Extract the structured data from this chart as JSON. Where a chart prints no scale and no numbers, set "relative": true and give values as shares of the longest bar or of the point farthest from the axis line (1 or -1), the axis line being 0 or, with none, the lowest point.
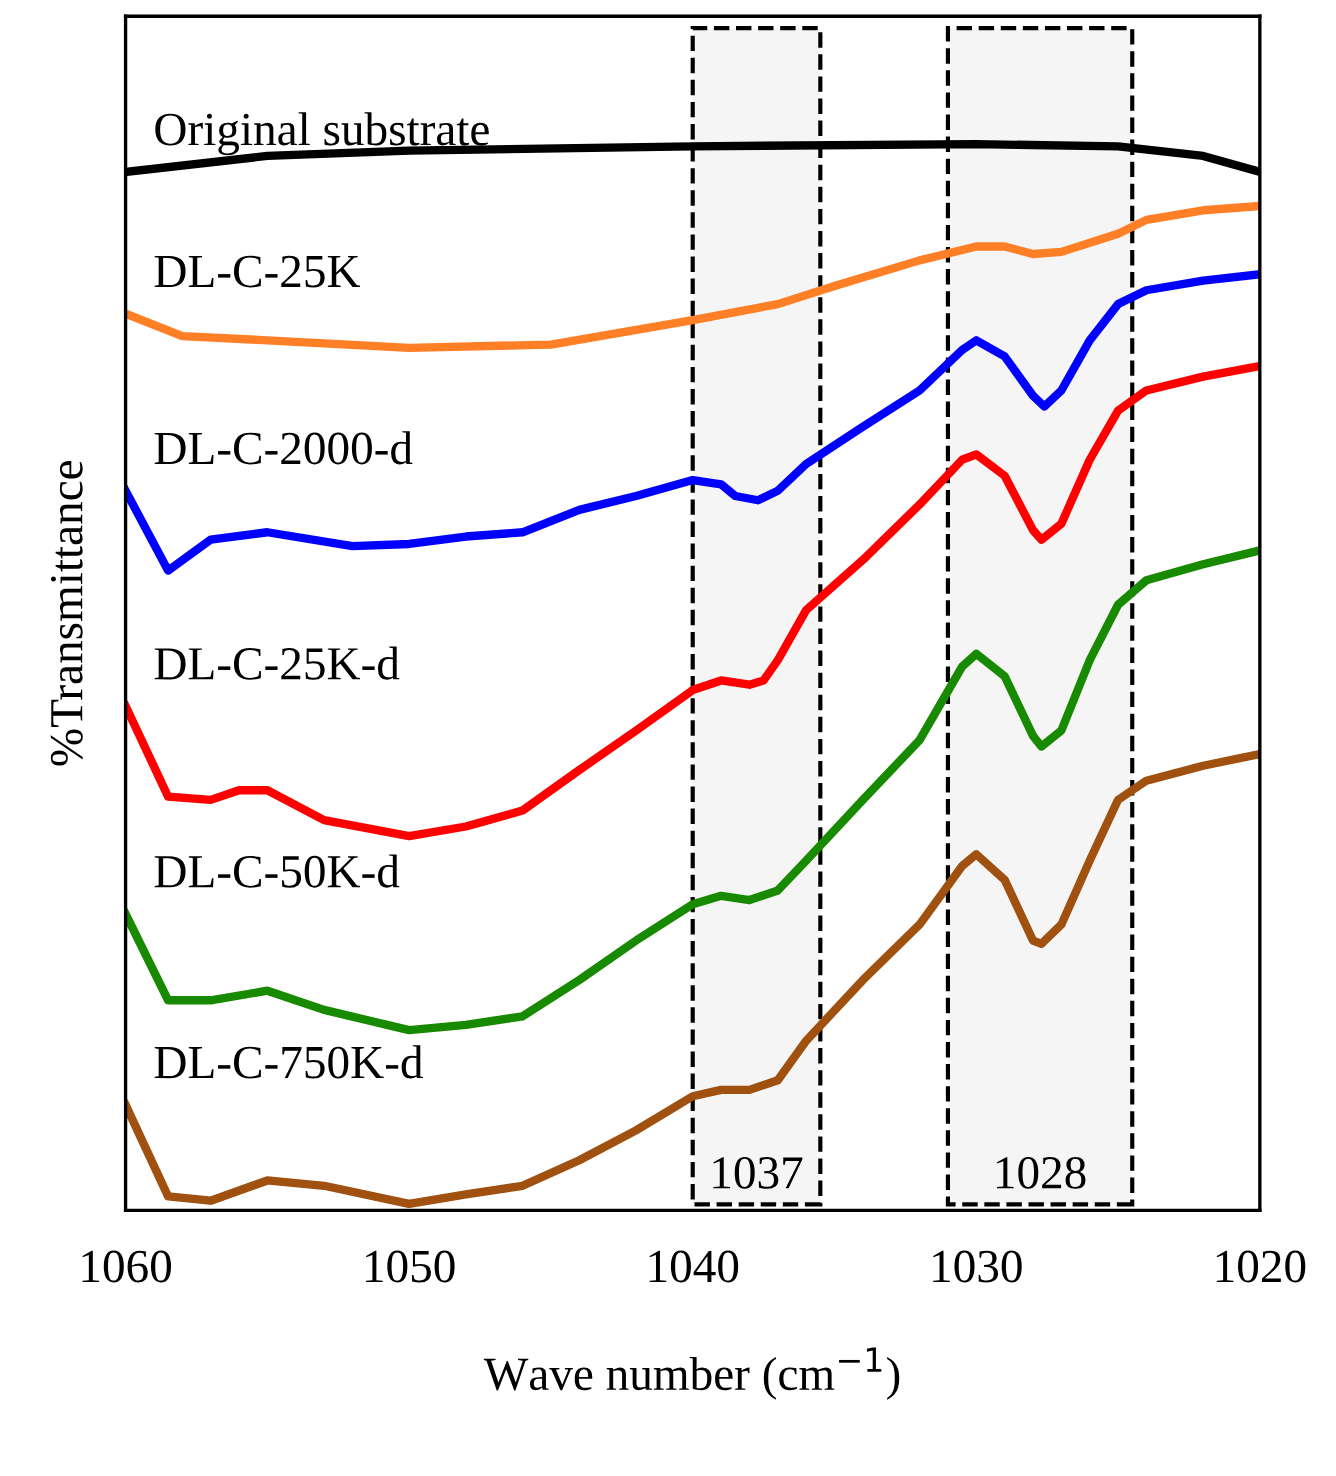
{
  "chart_data": {
    "type": "line",
    "relative": true,
    "xlabel": "Wave number (cm$^{−1}$)",
    "ylabel": "%Transmittance",
    "xlim": [
      1060,
      1020
    ],
    "xticks": [
      1060,
      1050,
      1040,
      1030,
      1020
    ],
    "grid": false,
    "legend": false,
    "tick_labels": "x",
    "line_style": "solid",
    "marker": "none",
    "series": [
      {
        "name": "Original substrate",
        "color": "#000000",
        "x": [
          1060,
          1055,
          1050,
          1040,
          1030,
          1025,
          1022,
          1020
        ],
        "values": [
          0.974,
          0.989,
          0.994,
          0.998,
          1.0,
          0.998,
          0.989,
          0.974
        ]
      },
      {
        "name": "DL-C-25K",
        "color": "#ff7f27",
        "x": [
          1060,
          1058,
          1055,
          1050,
          1045,
          1040,
          1037,
          1035,
          1032,
          1030,
          1029,
          1028,
          1027,
          1025,
          1024,
          1022,
          1020
        ],
        "values": [
          0.841,
          0.82,
          0.816,
          0.809,
          0.812,
          0.835,
          0.85,
          0.867,
          0.891,
          0.904,
          0.904,
          0.897,
          0.899,
          0.916,
          0.929,
          0.938,
          0.942
        ]
      },
      {
        "name": "DL-C-2000-d",
        "color": "#0000ff",
        "x": [
          1060,
          1058.5,
          1057,
          1055,
          1052,
          1050,
          1048,
          1046,
          1044,
          1042,
          1040,
          1039,
          1038.5,
          1037.7,
          1037,
          1036,
          1034,
          1032,
          1030.5,
          1030,
          1029,
          1028,
          1027.6,
          1027,
          1026,
          1025,
          1024,
          1022,
          1020
        ],
        "values": [
          0.675,
          0.6,
          0.629,
          0.636,
          0.623,
          0.625,
          0.632,
          0.636,
          0.657,
          0.67,
          0.685,
          0.681,
          0.67,
          0.666,
          0.675,
          0.7,
          0.735,
          0.769,
          0.807,
          0.816,
          0.801,
          0.764,
          0.754,
          0.769,
          0.816,
          0.85,
          0.863,
          0.872,
          0.878
        ]
      },
      {
        "name": "DL-C-25K-d",
        "color": "#ff0000",
        "x": [
          1060,
          1058.5,
          1057,
          1056,
          1055,
          1053,
          1050,
          1048,
          1046,
          1044,
          1042,
          1040,
          1039,
          1038,
          1037.5,
          1037,
          1036,
          1034,
          1032,
          1030.5,
          1030,
          1029,
          1028,
          1027.7,
          1027,
          1026,
          1025,
          1024,
          1022,
          1020
        ],
        "values": [
          0.473,
          0.388,
          0.385,
          0.394,
          0.394,
          0.366,
          0.351,
          0.36,
          0.375,
          0.413,
          0.45,
          0.488,
          0.497,
          0.493,
          0.497,
          0.516,
          0.563,
          0.61,
          0.662,
          0.704,
          0.709,
          0.689,
          0.638,
          0.629,
          0.644,
          0.704,
          0.75,
          0.769,
          0.782,
          0.792
        ]
      },
      {
        "name": "DL-C-50K-d",
        "color": "#178a00",
        "x": [
          1060,
          1058.5,
          1057,
          1055,
          1053,
          1050,
          1048,
          1046,
          1044,
          1042,
          1040,
          1039,
          1038,
          1037,
          1036,
          1034,
          1032,
          1030.5,
          1030,
          1029,
          1028,
          1027.7,
          1027,
          1026,
          1025,
          1024,
          1022,
          1020
        ],
        "values": [
          0.278,
          0.197,
          0.197,
          0.206,
          0.188,
          0.169,
          0.174,
          0.182,
          0.216,
          0.253,
          0.287,
          0.295,
          0.291,
          0.3,
          0.328,
          0.385,
          0.441,
          0.51,
          0.522,
          0.501,
          0.445,
          0.435,
          0.45,
          0.516,
          0.568,
          0.591,
          0.606,
          0.619
        ]
      },
      {
        "name": "DL-C-750K-d",
        "color": "#a0500f",
        "x": [
          1060,
          1058.5,
          1057,
          1055,
          1053,
          1050,
          1048,
          1046,
          1044,
          1042,
          1040,
          1039,
          1038,
          1037,
          1036,
          1034,
          1032,
          1030.5,
          1030,
          1029,
          1028,
          1027.7,
          1027,
          1026,
          1025,
          1024,
          1022,
          1020
        ],
        "values": [
          0.099,
          0.013,
          0.009,
          0.028,
          0.023,
          0.006,
          0.015,
          0.023,
          0.047,
          0.075,
          0.107,
          0.113,
          0.113,
          0.122,
          0.159,
          0.216,
          0.268,
          0.323,
          0.334,
          0.31,
          0.253,
          0.25,
          0.268,
          0.328,
          0.385,
          0.403,
          0.417,
          0.428
        ]
      }
    ],
    "bands": [
      {
        "axis": "x",
        "from": 1040,
        "to": 1035.5,
        "label": "1037",
        "color": "#000000"
      },
      {
        "axis": "x",
        "from": 1031,
        "to": 1024.5,
        "label": "1028",
        "color": "#000000"
      }
    ]
  }
}
